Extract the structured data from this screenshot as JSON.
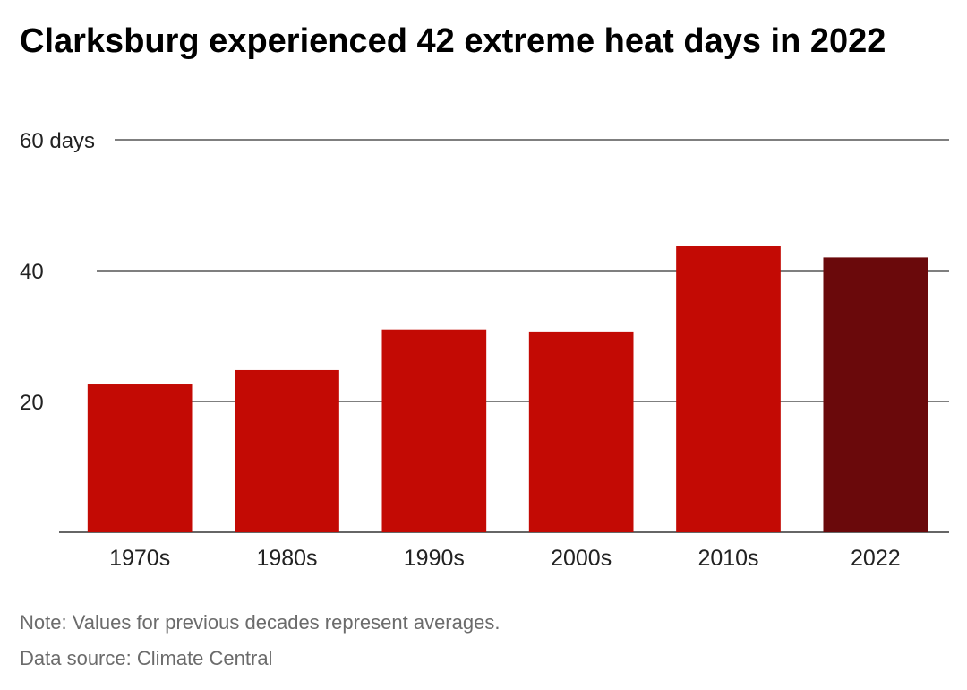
{
  "title": "Clarksburg experienced 42 extreme heat days in 2022",
  "chart_data": {
    "type": "bar",
    "categories": [
      "1970s",
      "1980s",
      "1990s",
      "2000s",
      "2010s",
      "2022"
    ],
    "values": [
      22.6,
      24.8,
      31.0,
      30.7,
      43.7,
      42
    ],
    "ylim": [
      0,
      60
    ],
    "y_ticks": [
      {
        "value": 20,
        "label": "20"
      },
      {
        "value": 40,
        "label": "40"
      },
      {
        "value": 60,
        "label": "60 days"
      }
    ],
    "grid": true,
    "colors": {
      "bar": "#c30a04",
      "highlight": "#6a090b",
      "grid": "#333333",
      "axis": "#333333"
    },
    "highlight_index": 5
  },
  "notes": {
    "note": "Note: Values for previous decades represent averages.",
    "source": "Data source: Climate Central"
  }
}
